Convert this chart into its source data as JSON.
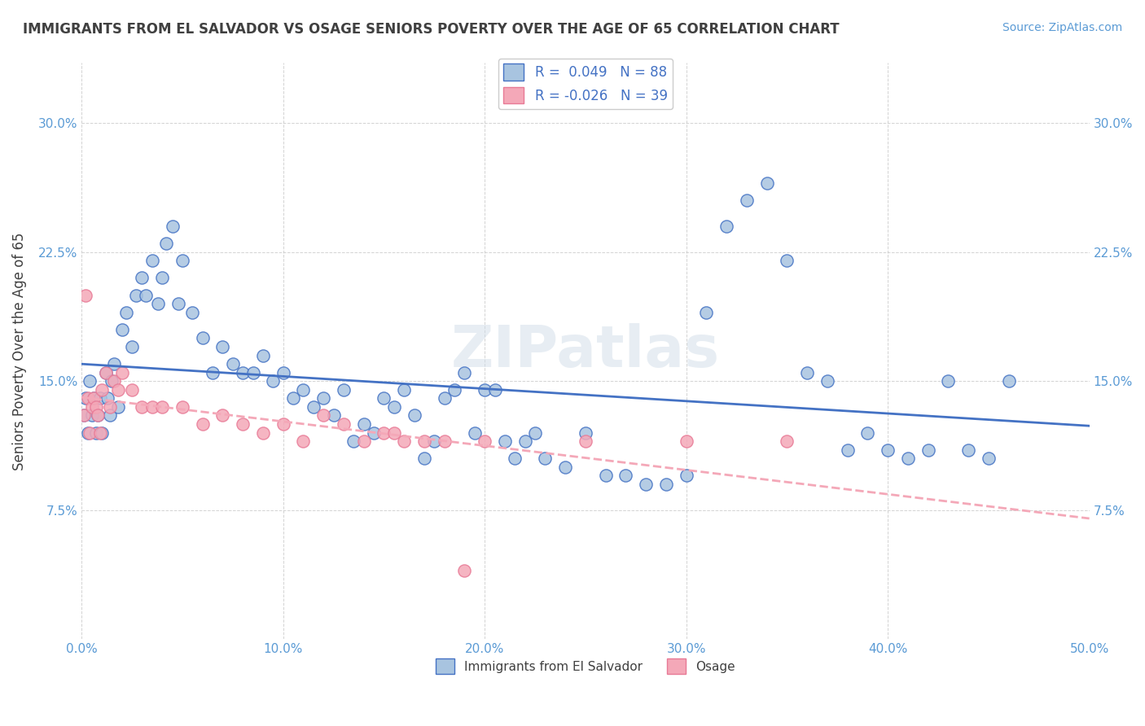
{
  "title": "IMMIGRANTS FROM EL SALVADOR VS OSAGE SENIORS POVERTY OVER THE AGE OF 65 CORRELATION CHART",
  "source": "Source: ZipAtlas.com",
  "xlabel": "",
  "ylabel": "Seniors Poverty Over the Age of 65",
  "legend_label1": "Immigrants from El Salvador",
  "legend_label2": "Osage",
  "R1": 0.049,
  "N1": 88,
  "R2": -0.026,
  "N2": 39,
  "color1": "#a8c4e0",
  "color2": "#f4a8b8",
  "line_color1": "#4472c4",
  "line_color2": "#f4a8b8",
  "xlim": [
    0.0,
    0.5
  ],
  "ylim": [
    0.0,
    0.335
  ],
  "xticks": [
    0.0,
    0.1,
    0.2,
    0.3,
    0.4,
    0.5
  ],
  "yticks": [
    0.075,
    0.15,
    0.225,
    0.3
  ],
  "xticklabels": [
    "0.0%",
    "10.0%",
    "20.0%",
    "30.0%",
    "40.0%",
    "50.0%"
  ],
  "yticklabels": [
    "7.5%",
    "15.0%",
    "22.5%",
    "30.0%"
  ],
  "watermark": "ZIPatlas",
  "watermark_color": "#d0dce8",
  "blue_points_x": [
    0.001,
    0.002,
    0.003,
    0.004,
    0.005,
    0.006,
    0.007,
    0.008,
    0.009,
    0.01,
    0.012,
    0.013,
    0.014,
    0.015,
    0.016,
    0.018,
    0.02,
    0.022,
    0.025,
    0.027,
    0.03,
    0.032,
    0.035,
    0.038,
    0.04,
    0.042,
    0.045,
    0.048,
    0.05,
    0.055,
    0.06,
    0.065,
    0.07,
    0.075,
    0.08,
    0.085,
    0.09,
    0.095,
    0.1,
    0.105,
    0.11,
    0.115,
    0.12,
    0.125,
    0.13,
    0.135,
    0.14,
    0.145,
    0.15,
    0.155,
    0.16,
    0.165,
    0.17,
    0.175,
    0.18,
    0.185,
    0.19,
    0.195,
    0.2,
    0.205,
    0.21,
    0.215,
    0.22,
    0.225,
    0.23,
    0.24,
    0.25,
    0.26,
    0.27,
    0.28,
    0.29,
    0.3,
    0.31,
    0.32,
    0.33,
    0.34,
    0.35,
    0.36,
    0.37,
    0.38,
    0.39,
    0.4,
    0.41,
    0.42,
    0.43,
    0.44,
    0.45,
    0.46
  ],
  "blue_points_y": [
    0.13,
    0.14,
    0.12,
    0.15,
    0.13,
    0.14,
    0.12,
    0.13,
    0.14,
    0.12,
    0.155,
    0.14,
    0.13,
    0.15,
    0.16,
    0.135,
    0.18,
    0.19,
    0.17,
    0.2,
    0.21,
    0.2,
    0.22,
    0.195,
    0.21,
    0.23,
    0.24,
    0.195,
    0.22,
    0.19,
    0.175,
    0.155,
    0.17,
    0.16,
    0.155,
    0.155,
    0.165,
    0.15,
    0.155,
    0.14,
    0.145,
    0.135,
    0.14,
    0.13,
    0.145,
    0.115,
    0.125,
    0.12,
    0.14,
    0.135,
    0.145,
    0.13,
    0.105,
    0.115,
    0.14,
    0.145,
    0.155,
    0.12,
    0.145,
    0.145,
    0.115,
    0.105,
    0.115,
    0.12,
    0.105,
    0.1,
    0.12,
    0.095,
    0.095,
    0.09,
    0.09,
    0.095,
    0.19,
    0.24,
    0.255,
    0.265,
    0.22,
    0.155,
    0.15,
    0.11,
    0.12,
    0.11,
    0.105,
    0.11,
    0.15,
    0.11,
    0.105,
    0.15
  ],
  "pink_points_x": [
    0.001,
    0.002,
    0.003,
    0.004,
    0.005,
    0.006,
    0.007,
    0.008,
    0.009,
    0.01,
    0.012,
    0.014,
    0.016,
    0.018,
    0.02,
    0.025,
    0.03,
    0.035,
    0.04,
    0.05,
    0.06,
    0.07,
    0.08,
    0.09,
    0.1,
    0.11,
    0.12,
    0.13,
    0.14,
    0.15,
    0.155,
    0.16,
    0.17,
    0.18,
    0.19,
    0.2,
    0.25,
    0.3,
    0.35
  ],
  "pink_points_y": [
    0.13,
    0.2,
    0.14,
    0.12,
    0.135,
    0.14,
    0.135,
    0.13,
    0.12,
    0.145,
    0.155,
    0.135,
    0.15,
    0.145,
    0.155,
    0.145,
    0.135,
    0.135,
    0.135,
    0.135,
    0.125,
    0.13,
    0.125,
    0.12,
    0.125,
    0.115,
    0.13,
    0.125,
    0.115,
    0.12,
    0.12,
    0.115,
    0.115,
    0.115,
    0.04,
    0.115,
    0.115,
    0.115,
    0.115
  ]
}
